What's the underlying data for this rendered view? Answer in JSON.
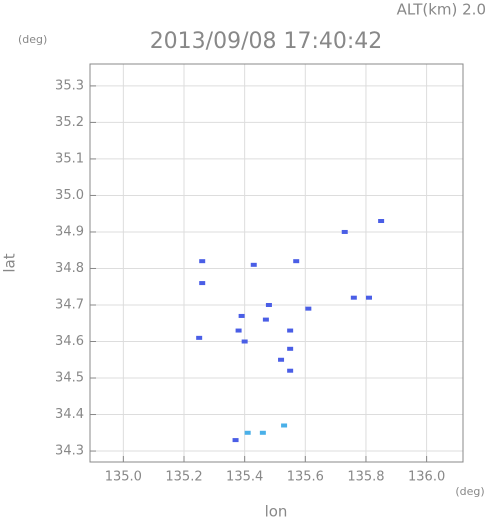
{
  "chart_data": {
    "type": "scatter",
    "corner_label": "ALT(km) 2.0",
    "title": "2013/09/08 17:40:42",
    "y_unit": "(deg)",
    "x_unit": "(deg)",
    "x_label": "lon",
    "y_label": "lat",
    "xlim": [
      134.89,
      136.12
    ],
    "ylim": [
      34.27,
      35.36
    ],
    "xticks": [
      {
        "value": 135.0,
        "label": "135.0"
      },
      135.2,
      135.4,
      135.6,
      135.8,
      {
        "value": 136.0,
        "label": "136.0"
      }
    ],
    "yticks": [
      34.3,
      34.4,
      34.5,
      34.6,
      34.7,
      34.8,
      34.9,
      {
        "value": 35.0,
        "label": "35.0"
      },
      35.1,
      35.2,
      35.3
    ],
    "grid": true,
    "series": [
      {
        "color": "#4a5ee6",
        "x": [
          135.85,
          135.73,
          135.76,
          135.81,
          135.61,
          135.48,
          135.38,
          135.47,
          135.55,
          135.55,
          135.55,
          135.52,
          135.4,
          135.26,
          135.26,
          135.25,
          135.39,
          135.57,
          135.43,
          135.37
        ],
        "y": [
          34.93,
          34.9,
          34.72,
          34.72,
          34.69,
          34.7,
          34.63,
          34.66,
          34.63,
          34.58,
          34.52,
          34.55,
          34.6,
          34.82,
          34.76,
          34.61,
          34.67,
          34.82,
          34.81,
          34.33
        ]
      },
      {
        "color": "#4ab0e8",
        "x": [
          135.41,
          135.46,
          135.53
        ],
        "y": [
          34.35,
          34.35,
          34.37
        ]
      }
    ]
  }
}
